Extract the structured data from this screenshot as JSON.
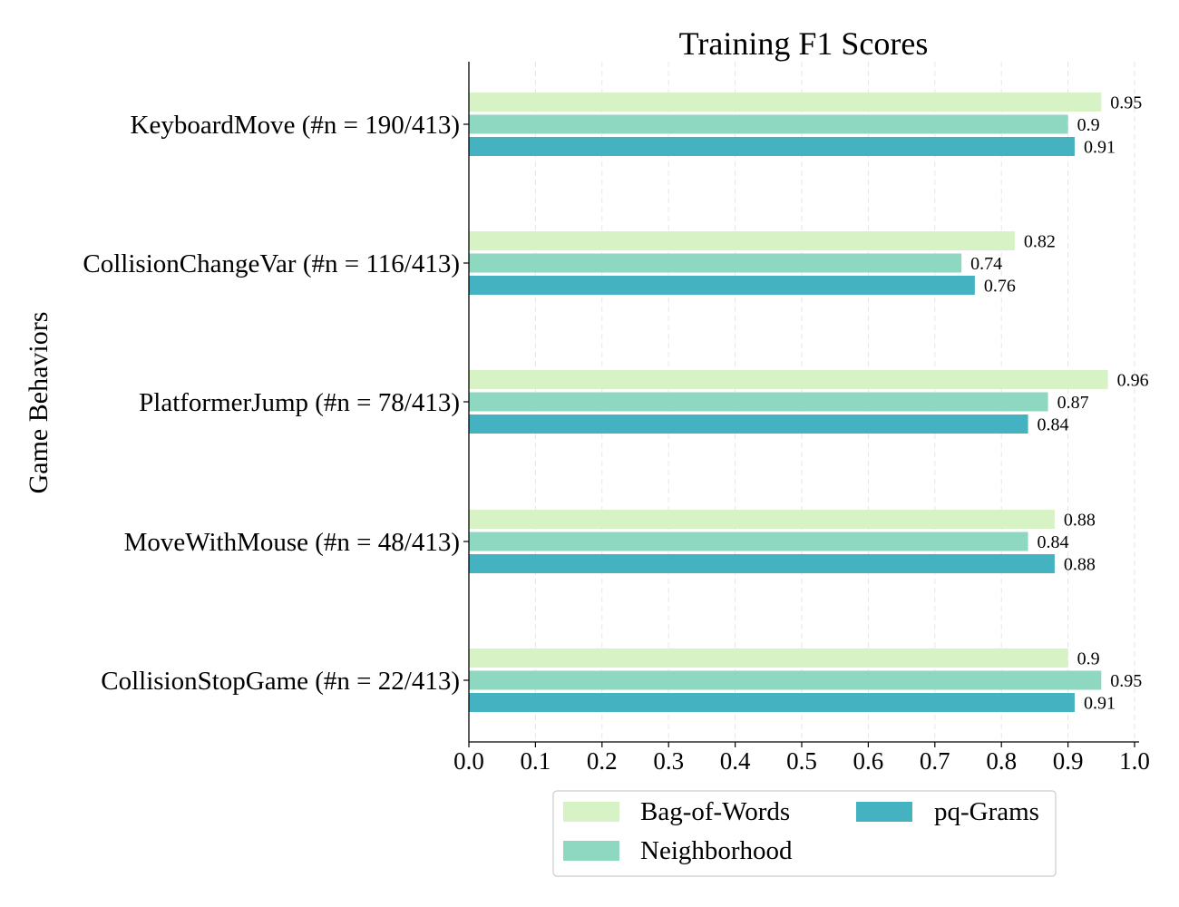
{
  "chart_data": {
    "type": "bar",
    "orientation": "horizontal",
    "title": "Training F1 Scores",
    "ylabel": "Game Behaviors",
    "xlabel": "",
    "xlim": [
      0,
      1.0
    ],
    "xticks": [
      "0.0",
      "0.1",
      "0.2",
      "0.3",
      "0.4",
      "0.5",
      "0.6",
      "0.7",
      "0.8",
      "0.9",
      "1.0"
    ],
    "grid": "vertical-dashed",
    "legend_position": "bottom",
    "categories": [
      "KeyboardMove (#n = 190/413)",
      "CollisionChangeVar (#n = 116/413)",
      "PlatformerJump (#n = 78/413)",
      "MoveWithMouse (#n = 48/413)",
      "CollisionStopGame (#n = 22/413)"
    ],
    "series": [
      {
        "name": "Bag-of-Words",
        "color": "#d7f2c4",
        "values": [
          0.95,
          0.82,
          0.96,
          0.88,
          0.9
        ],
        "labels": [
          "0.95",
          "0.82",
          "0.96",
          "0.88",
          "0.9"
        ]
      },
      {
        "name": "Neighborhood",
        "color": "#8ed8c1",
        "values": [
          0.9,
          0.74,
          0.87,
          0.84,
          0.95
        ],
        "labels": [
          "0.9",
          "0.74",
          "0.87",
          "0.84",
          "0.95"
        ]
      },
      {
        "name": "pq-Grams",
        "color": "#44b2c0",
        "values": [
          0.91,
          0.76,
          0.84,
          0.88,
          0.91
        ],
        "labels": [
          "0.91",
          "0.76",
          "0.84",
          "0.88",
          "0.91"
        ]
      }
    ]
  }
}
